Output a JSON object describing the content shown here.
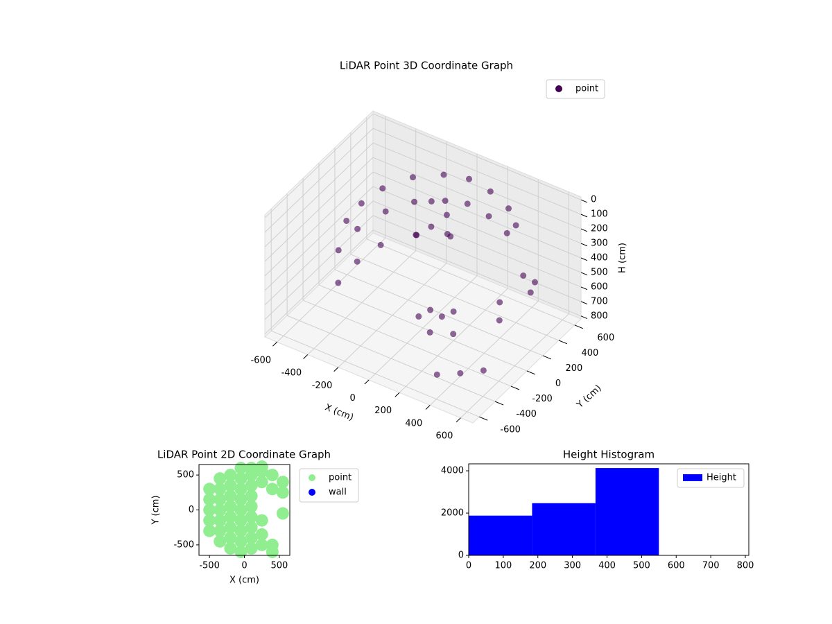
{
  "chart_data": [
    {
      "type": "scatter3d",
      "title": "LiDAR Point 3D Coordinate Graph",
      "xlabel": "X (cm)",
      "ylabel": "Y (cm)",
      "zlabel": "H (cm)",
      "xlim": [
        -680,
        680
      ],
      "ylim": [
        -680,
        680
      ],
      "zlim": [
        820,
        -20
      ],
      "xticks": [
        -600,
        -400,
        -200,
        0,
        200,
        400,
        600
      ],
      "yticks": [
        -600,
        -400,
        -200,
        0,
        200,
        400,
        600
      ],
      "zticks": [
        0,
        100,
        200,
        300,
        400,
        500,
        600,
        700,
        800
      ],
      "grid": true,
      "legend": "upper right",
      "series": [
        {
          "name": "point",
          "color": "#440154",
          "x": [
            -500,
            -480,
            -420,
            -300,
            -150,
            0,
            150,
            300,
            400,
            -500,
            -480,
            -400,
            -280,
            -130,
            0,
            150,
            300,
            -450,
            -430,
            -380,
            -250,
            -100,
            -100,
            0,
            -50,
            50,
            -150,
            100,
            150,
            200,
            250,
            150,
            50,
            500,
            550,
            600,
            450,
            500,
            300,
            400,
            500
          ],
          "y": [
            0,
            150,
            300,
            450,
            550,
            580,
            560,
            500,
            400,
            -100,
            100,
            300,
            430,
            530,
            560,
            540,
            480,
            -200,
            0,
            200,
            400,
            500,
            300,
            300,
            200,
            250,
            200,
            -100,
            -50,
            0,
            -100,
            -200,
            -150,
            300,
            350,
            200,
            100,
            0,
            -400,
            -300,
            -200
          ],
          "z": [
            300,
            250,
            200,
            150,
            120,
            100,
            110,
            130,
            150,
            450,
            400,
            350,
            300,
            280,
            260,
            270,
            290,
            600,
            550,
            520,
            500,
            480,
            150,
            200,
            250,
            300,
            350,
            600,
            650,
            620,
            700,
            680,
            640,
            400,
            450,
            420,
            500,
            550,
            800,
            800,
            790
          ]
        }
      ]
    },
    {
      "type": "scatter",
      "title": "LiDAR Point 2D Coordinate Graph",
      "xlabel": "X (cm)",
      "ylabel": "Y (cm)",
      "xlim": [
        -650,
        650
      ],
      "ylim": [
        -650,
        650
      ],
      "xticks": [
        -500,
        0,
        500
      ],
      "yticks": [
        -500,
        0,
        500
      ],
      "legend": "outside right",
      "series": [
        {
          "name": "point",
          "color": "#90ee90",
          "x": [
            -500,
            -500,
            -500,
            -500,
            -500,
            -350,
            -350,
            -350,
            -350,
            -350,
            -350,
            -350,
            -200,
            -200,
            -200,
            -200,
            -200,
            -200,
            -200,
            -200,
            -50,
            -50,
            -50,
            -50,
            -50,
            -50,
            -50,
            -50,
            -50,
            100,
            100,
            100,
            100,
            100,
            100,
            100,
            100,
            100,
            250,
            250,
            250,
            250,
            250,
            250,
            400,
            400,
            400,
            400,
            550,
            550,
            550
          ],
          "y": [
            -300,
            -150,
            0,
            150,
            300,
            -450,
            -300,
            -150,
            0,
            150,
            300,
            450,
            -550,
            -400,
            -250,
            -100,
            50,
            200,
            350,
            500,
            -600,
            -450,
            -300,
            -150,
            0,
            150,
            300,
            450,
            600,
            -550,
            -400,
            -250,
            -100,
            50,
            200,
            350,
            500,
            600,
            -500,
            -350,
            -150,
            400,
            550,
            620,
            -500,
            -600,
            300,
            500,
            400,
            250,
            -50
          ]
        },
        {
          "name": "wall",
          "color": "#0000ff",
          "x": [],
          "y": []
        }
      ]
    },
    {
      "type": "histogram",
      "title": "Height Histogram",
      "xlim": [
        0,
        810
      ],
      "ylim": [
        0,
        4330
      ],
      "xticks": [
        0,
        100,
        200,
        300,
        400,
        500,
        600,
        700,
        800
      ],
      "yticks": [
        0,
        2000,
        4000
      ],
      "legend": "upper right",
      "bins": [
        0,
        183.3,
        366.7,
        550
      ],
      "series": [
        {
          "name": "Height",
          "color": "#0000ff",
          "values": [
            1880,
            2470,
            4130
          ]
        }
      ]
    }
  ]
}
